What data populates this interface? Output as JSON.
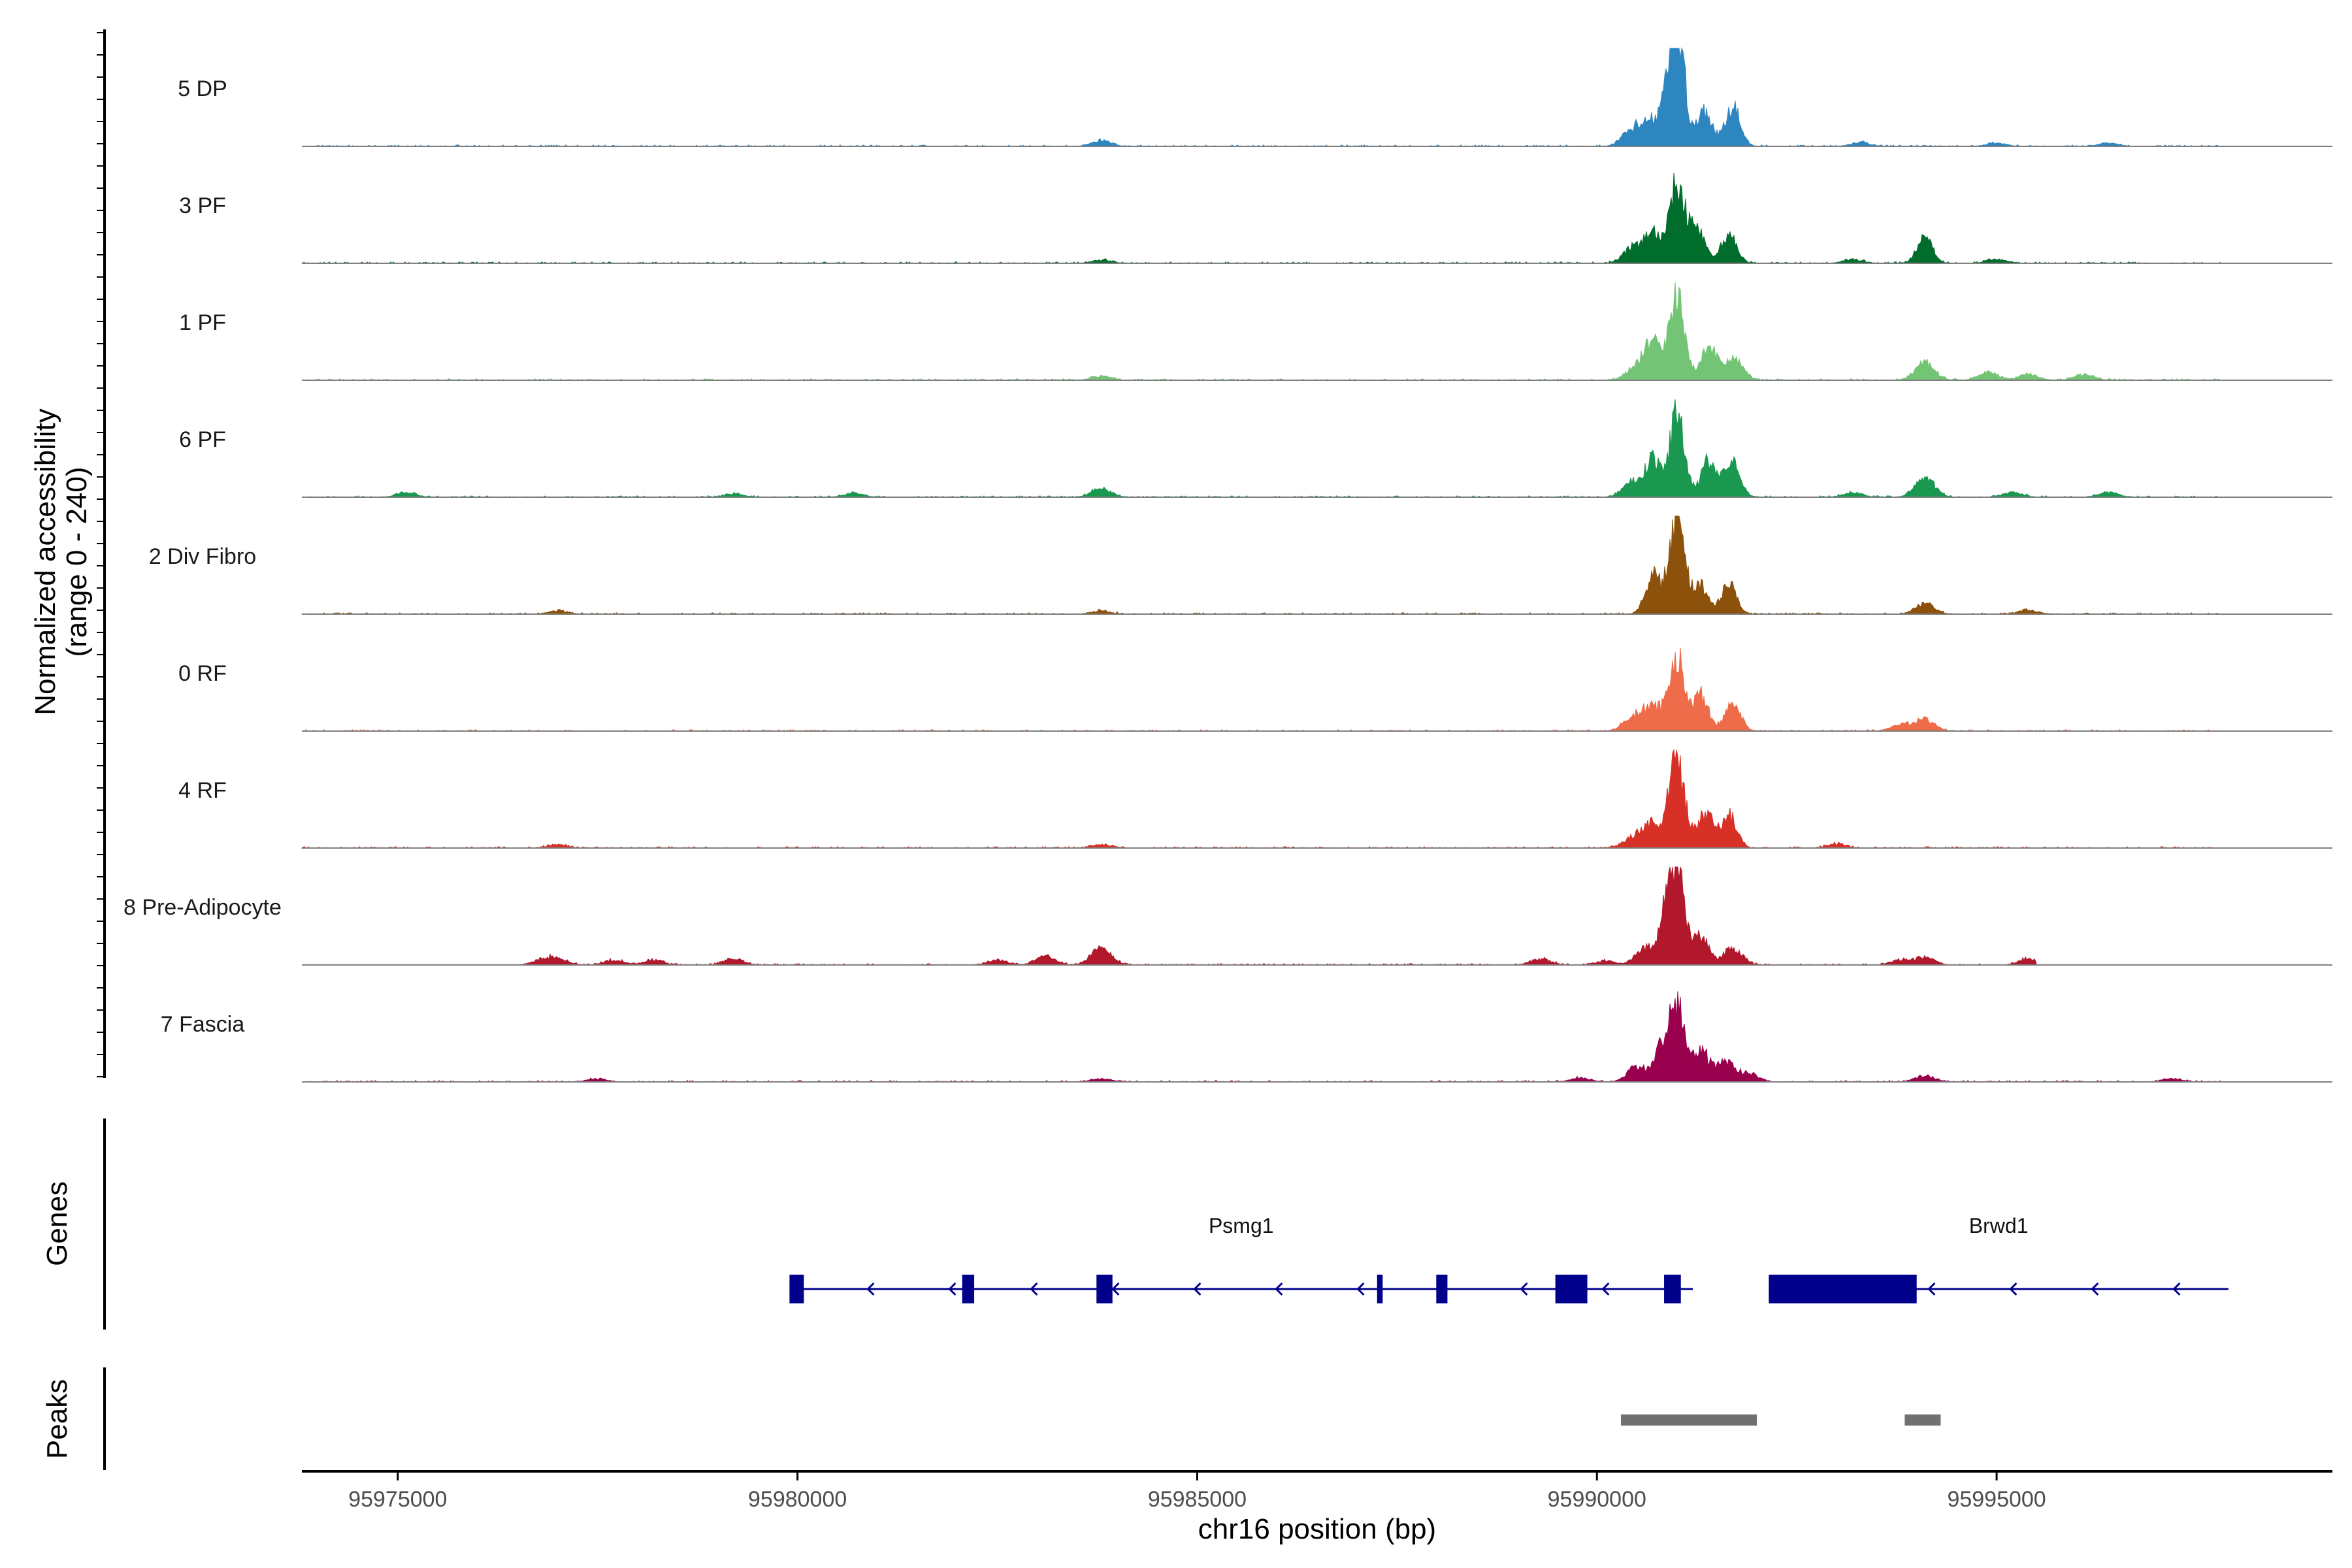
{
  "chart_data": {
    "type": "area",
    "title": "",
    "ylabel": "Normalized accessibility",
    "ylabel_range": "(range 0 - 240)",
    "ylim": [
      0,
      240
    ],
    "xlabel": "chr16 position (bp)",
    "xlim": [
      95973800,
      95999200
    ],
    "x_ticks": [
      95975000,
      95980000,
      95985000,
      95990000,
      95995000
    ],
    "x_tick_labels": [
      "95975000",
      "95980000",
      "95985000",
      "95990000",
      "95995000"
    ],
    "tracks": [
      {
        "name": "5 DP",
        "color": "#2e86c1",
        "coverage_start": 95973800,
        "coverage_end": 95997800,
        "peaks": [
          [
            95983800,
            14
          ],
          [
            95990450,
            45
          ],
          [
            95990700,
            60
          ],
          [
            95990950,
            120
          ],
          [
            95991000,
            240
          ],
          [
            95991350,
            85
          ],
          [
            95991700,
            95
          ],
          [
            95993300,
            10
          ],
          [
            95995000,
            8
          ],
          [
            95996400,
            8
          ]
        ]
      },
      {
        "name": "3 PF",
        "color": "#006d2c",
        "coverage_start": 95973800,
        "coverage_end": 95997800,
        "peaks": [
          [
            95983800,
            8
          ],
          [
            95990450,
            40
          ],
          [
            95990700,
            75
          ],
          [
            95991000,
            195
          ],
          [
            95991250,
            90
          ],
          [
            95991650,
            75
          ],
          [
            95993200,
            10
          ],
          [
            95994100,
            68
          ],
          [
            95995000,
            10
          ]
        ]
      },
      {
        "name": "1 PF",
        "color": "#74c476",
        "coverage_start": 95973800,
        "coverage_end": 95997800,
        "peaks": [
          [
            95983800,
            10
          ],
          [
            95990500,
            35
          ],
          [
            95990700,
            90
          ],
          [
            95991000,
            225
          ],
          [
            95991400,
            80
          ],
          [
            95991700,
            55
          ],
          [
            95994100,
            45
          ],
          [
            95994900,
            20
          ],
          [
            95995400,
            15
          ],
          [
            95996100,
            14
          ]
        ]
      },
      {
        "name": "6 PF",
        "color": "#1a9850",
        "coverage_start": 95973800,
        "coverage_end": 95997800,
        "peaks": [
          [
            95975100,
            12
          ],
          [
            95979200,
            8
          ],
          [
            95980700,
            10
          ],
          [
            95983800,
            22
          ],
          [
            95990450,
            40
          ],
          [
            95990700,
            90
          ],
          [
            95991000,
            200
          ],
          [
            95991400,
            90
          ],
          [
            95991700,
            95
          ],
          [
            95993200,
            12
          ],
          [
            95994100,
            48
          ],
          [
            95995200,
            12
          ],
          [
            95996400,
            12
          ]
        ]
      },
      {
        "name": "2 Div Fibro",
        "color": "#8c510a",
        "coverage_start": 95973800,
        "coverage_end": 95997800,
        "peaks": [
          [
            95977000,
            8
          ],
          [
            95983800,
            8
          ],
          [
            95990700,
            95
          ],
          [
            95991000,
            250
          ],
          [
            95991300,
            70
          ],
          [
            95991650,
            75
          ],
          [
            95994100,
            25
          ],
          [
            95995400,
            10
          ]
        ]
      },
      {
        "name": "0 RF",
        "color": "#ef6c4a",
        "coverage_start": 95973800,
        "coverage_end": 95997800,
        "peaks": [
          [
            95990450,
            35
          ],
          [
            95990700,
            60
          ],
          [
            95991000,
            185
          ],
          [
            95991300,
            90
          ],
          [
            95991700,
            70
          ],
          [
            95993800,
            15
          ],
          [
            95994100,
            30
          ]
        ]
      },
      {
        "name": "4 RF",
        "color": "#d73027",
        "coverage_start": 95973800,
        "coverage_end": 95997800,
        "peaks": [
          [
            95977000,
            8
          ],
          [
            95983800,
            8
          ],
          [
            95990450,
            25
          ],
          [
            95990700,
            60
          ],
          [
            95991000,
            220
          ],
          [
            95991350,
            90
          ],
          [
            95991650,
            85
          ],
          [
            95993000,
            10
          ]
        ]
      },
      {
        "name": "8 Pre-Adipocyte",
        "color": "#b2182b",
        "coverage_start": 95976500,
        "coverage_end": 95995500,
        "peaks": [
          [
            95976800,
            12
          ],
          [
            95977000,
            15
          ],
          [
            95977700,
            12
          ],
          [
            95978200,
            12
          ],
          [
            95979200,
            15
          ],
          [
            95982500,
            12
          ],
          [
            95983100,
            22
          ],
          [
            95983800,
            45
          ],
          [
            95989300,
            15
          ],
          [
            95990100,
            10
          ],
          [
            95990600,
            40
          ],
          [
            95990850,
            90
          ],
          [
            95991000,
            240
          ],
          [
            95991300,
            70
          ],
          [
            95991700,
            40
          ],
          [
            95993800,
            12
          ],
          [
            95994100,
            20
          ],
          [
            95995400,
            15
          ],
          [
            95995900,
            12
          ]
        ]
      },
      {
        "name": "7 Fascia",
        "color": "#99004d",
        "coverage_start": 95973800,
        "coverage_end": 95997800,
        "peaks": [
          [
            95977500,
            8
          ],
          [
            95983800,
            8
          ],
          [
            95989800,
            10
          ],
          [
            95990500,
            35
          ],
          [
            95990800,
            75
          ],
          [
            95991000,
            185
          ],
          [
            95991300,
            80
          ],
          [
            95991600,
            50
          ],
          [
            95991900,
            20
          ],
          [
            95994100,
            15
          ],
          [
            95997200,
            8
          ]
        ]
      }
    ],
    "genes_label": "Genes",
    "genes": [
      {
        "name": "Psmg1",
        "strand": "-",
        "start": 95979900,
        "end": 95991200,
        "exons": [
          [
            95979900,
            95980080
          ],
          [
            95982060,
            95982210
          ],
          [
            95983740,
            95983940
          ],
          [
            95987250,
            95987320
          ],
          [
            95987990,
            95988130
          ],
          [
            95989480,
            95989880
          ],
          [
            95990840,
            95991050
          ]
        ]
      },
      {
        "name": "Brwd1",
        "strand": "-",
        "start": 95992150,
        "end": 95997900,
        "exons": [
          [
            95992150,
            95994000
          ]
        ]
      }
    ],
    "peaks_label": "Peaks",
    "peak_regions": [
      [
        95990300,
        95992000
      ],
      [
        95993850,
        95994300
      ]
    ]
  },
  "colors": {
    "gene_color": "#00008b",
    "peak_region_color": "#707070",
    "baseline_color": "#7f7f7f",
    "axis_color": "#000000"
  }
}
